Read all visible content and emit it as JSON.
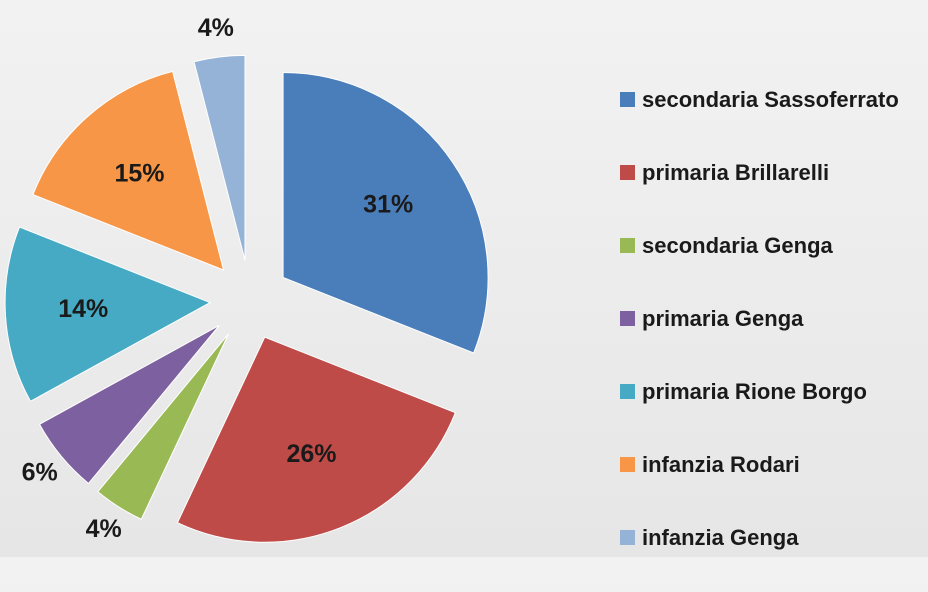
{
  "chart_data": {
    "type": "pie",
    "categories": [
      "secondaria Sassoferrato",
      "primaria Brillarelli",
      "secondaria Genga",
      "primaria Genga",
      "primaria Rione Borgo",
      "infanzia Rodari",
      "infanzia Genga"
    ],
    "values": [
      31,
      26,
      4,
      6,
      14,
      15,
      4
    ],
    "value_labels": [
      "31%",
      "26%",
      "4%",
      "6%",
      "14%",
      "15%",
      "4%"
    ],
    "colors": [
      "#4a7ebb",
      "#be4b48",
      "#98b954",
      "#7d60a0",
      "#46aac5",
      "#f79646",
      "#95b3d7"
    ],
    "exploded": true,
    "legend": "right"
  }
}
